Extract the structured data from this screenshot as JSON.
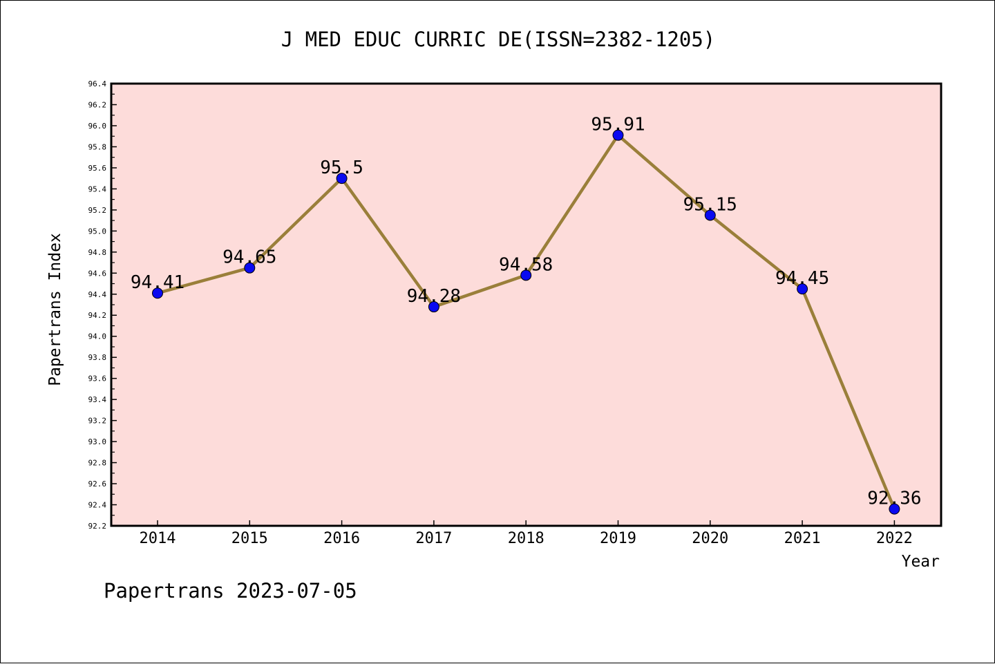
{
  "chart_data": {
    "type": "line",
    "title": "J MED EDUC CURRIC DE(ISSN=2382-1205)",
    "xlabel": "Year",
    "ylabel": "Papertrans Index",
    "categories": [
      "2014",
      "2015",
      "2016",
      "2017",
      "2018",
      "2019",
      "2020",
      "2021",
      "2022"
    ],
    "series": [
      {
        "values": [
          94.41,
          94.65,
          95.5,
          94.28,
          94.58,
          95.91,
          95.15,
          94.45,
          92.36
        ],
        "labels": [
          "94.41",
          "94.65",
          "95.5",
          "94.28",
          "94.58",
          "95.91",
          "95.15",
          "94.45",
          "92.36"
        ]
      }
    ],
    "ylim": [
      92.2,
      96.4
    ],
    "y_ticks": [
      "92.2",
      "92.4",
      "92.6",
      "92.8",
      "93.0",
      "93.2",
      "93.4",
      "93.6",
      "93.8",
      "94.0",
      "94.2",
      "94.4",
      "94.6",
      "94.8",
      "95.0",
      "95.2",
      "95.4",
      "95.6",
      "95.8",
      "96.0",
      "96.2",
      "96.4"
    ],
    "grid": false,
    "colors": {
      "plot_background": "#fddcda",
      "line": "#9a7f3a",
      "marker": "#0a0af0",
      "axis": "#000000"
    }
  },
  "footer": {
    "text": "Papertrans 2023-07-05"
  }
}
